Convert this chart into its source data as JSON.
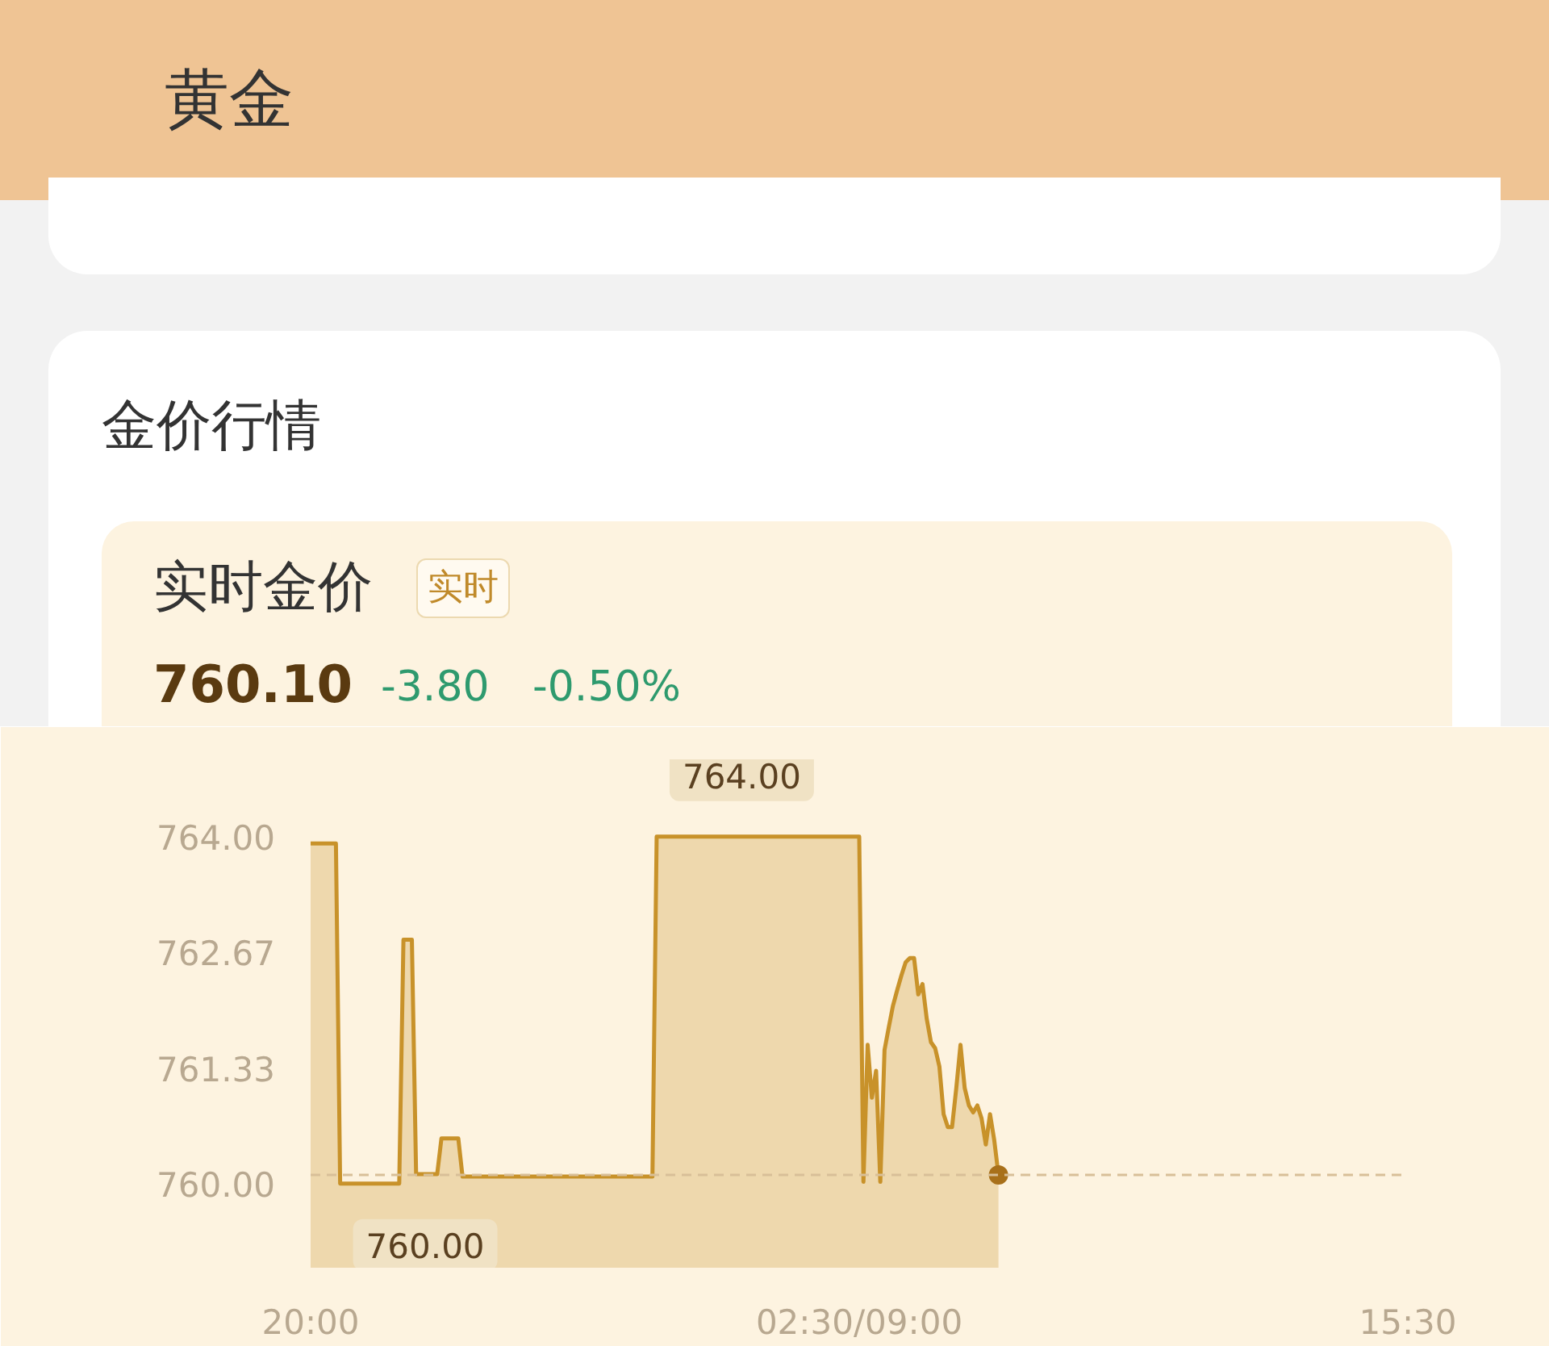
{
  "chart_data": {
    "type": "area",
    "title": "黄金",
    "subtitle": "金价行情",
    "annotations": [
      "实时金价",
      "实时",
      "760.10",
      "-3.80",
      "-0.50%",
      {
        "text": "764.00",
        "y": 764.0
      },
      {
        "text": "760.00",
        "y": 760.0
      }
    ],
    "categories": [
      "20:00",
      null,
      null,
      null,
      null,
      null,
      null,
      null,
      null,
      null,
      null,
      null,
      null,
      null,
      null,
      null,
      null,
      null,
      null,
      null,
      null,
      null,
      null,
      null,
      null,
      null,
      null,
      null,
      null,
      null,
      null,
      null,
      null,
      null,
      null,
      null,
      null,
      null,
      null,
      null,
      null,
      null,
      null,
      null,
      null,
      null,
      null,
      null,
      null,
      null,
      null,
      null,
      null,
      null,
      null,
      null,
      null,
      null,
      null,
      null,
      null,
      null,
      null,
      null,
      null,
      null,
      null,
      null,
      null,
      null,
      null,
      null,
      null,
      null,
      null,
      null,
      null,
      null,
      null,
      null,
      null,
      null,
      null,
      null,
      null,
      null,
      null,
      null,
      null,
      null,
      null,
      null,
      null,
      null,
      null,
      null,
      null,
      null,
      null,
      null,
      null,
      null,
      null,
      null,
      null,
      null,
      null,
      null,
      null,
      null,
      null,
      null,
      null,
      null,
      null,
      null,
      null,
      null,
      null,
      null,
      null,
      null,
      null,
      null,
      null,
      null,
      null,
      null,
      null,
      null,
      "02:30/09:00",
      null,
      null,
      null,
      null,
      null,
      null,
      null,
      null,
      null,
      null,
      null,
      null,
      null,
      null,
      null,
      null,
      null,
      null,
      null,
      null,
      null,
      null,
      null,
      null,
      null,
      null,
      null,
      null,
      null,
      null,
      null,
      null,
      null,
      null,
      null,
      null,
      null,
      null,
      null,
      null,
      null,
      null,
      null,
      null,
      null,
      null,
      null,
      null,
      null,
      null,
      null,
      null,
      null,
      null,
      null,
      null,
      null,
      null,
      null,
      null,
      null,
      null,
      null,
      null,
      null,
      null,
      null,
      null,
      null,
      null,
      null,
      null,
      null,
      null,
      null,
      null,
      null,
      null,
      null,
      null,
      null,
      null,
      null,
      null,
      null,
      null,
      null,
      null,
      null,
      null,
      null,
      null,
      null,
      null,
      null,
      null,
      null,
      null,
      null,
      null,
      null,
      null,
      null,
      null,
      null,
      null,
      null,
      null,
      null,
      null,
      null,
      null,
      null,
      null,
      null,
      null,
      null,
      null,
      null,
      null,
      null,
      null,
      null,
      null,
      null,
      null,
      null,
      null,
      null,
      "15:30"
    ],
    "ylim": [
      759.03,
      764.89
    ],
    "yticks": [
      {
        "value": 764.0,
        "label": "764.00"
      },
      {
        "value": 762.67,
        "label": "762.67"
      },
      {
        "value": 761.33,
        "label": "761.33"
      },
      {
        "value": 760.0,
        "label": "760.00"
      }
    ],
    "ref_lines": [
      {
        "axis": "y",
        "value": 760.1,
        "color": "#d8bf98",
        "line_style": "dashed"
      }
    ],
    "series": [
      {
        "color": "#c8922a",
        "values": [
          763.92,
          763.92,
          763.92,
          763.92,
          763.92,
          763.92,
          763.92,
          760.0,
          760.0,
          760.0,
          760.0,
          760.0,
          760.0,
          760.0,
          760.0,
          760.0,
          760.0,
          760.0,
          760.0,
          760.0,
          760.0,
          760.0,
          762.81,
          762.81,
          762.81,
          760.11,
          760.11,
          760.11,
          760.11,
          760.11,
          760.11,
          760.52,
          760.52,
          760.52,
          760.52,
          760.52,
          760.08,
          760.08,
          760.08,
          760.08,
          760.08,
          760.08,
          760.08,
          760.08,
          760.08,
          760.08,
          760.08,
          760.08,
          760.08,
          760.08,
          760.08,
          760.08,
          760.08,
          760.08,
          760.08,
          760.08,
          760.08,
          760.08,
          760.08,
          760.08,
          760.08,
          760.08,
          760.08,
          760.08,
          760.08,
          760.08,
          760.08,
          760.08,
          760.08,
          760.08,
          760.08,
          760.08,
          760.08,
          760.08,
          760.08,
          760.08,
          760.08,
          760.08,
          760.08,
          760.08,
          760.08,
          760.08,
          764.0,
          764.0,
          764.0,
          764.0,
          764.0,
          764.0,
          764.0,
          764.0,
          764.0,
          764.0,
          764.0,
          764.0,
          764.0,
          764.0,
          764.0,
          764.0,
          764.0,
          764.0,
          764.0,
          764.0,
          764.0,
          764.0,
          764.0,
          764.0,
          764.0,
          764.0,
          764.0,
          764.0,
          764.0,
          764.0,
          764.0,
          764.0,
          764.0,
          764.0,
          764.0,
          764.0,
          764.0,
          764.0,
          764.0,
          764.0,
          764.0,
          764.0,
          764.0,
          764.0,
          764.0,
          764.0,
          764.0,
          764.0,
          764.0,
          760.02,
          761.6,
          760.99,
          761.3,
          760.02,
          761.54,
          761.8,
          762.05,
          762.23,
          762.4,
          762.55,
          762.6,
          762.6,
          762.18,
          762.3,
          761.9,
          761.63,
          761.56,
          761.35,
          760.8,
          760.65,
          760.65,
          761.1,
          761.6,
          761.1,
          760.9,
          760.82,
          760.9,
          760.75,
          760.45,
          760.8,
          760.5,
          760.1,
          null,
          null,
          null,
          null,
          null,
          null,
          null,
          null,
          null,
          null,
          null,
          null,
          null,
          null,
          null,
          null,
          null,
          null,
          null,
          null,
          null,
          null,
          null,
          null,
          null,
          null,
          null,
          null,
          null,
          null,
          null,
          null,
          null,
          null,
          null,
          null,
          null,
          null,
          null,
          null,
          null,
          null,
          null,
          null,
          null,
          null,
          null,
          null,
          null,
          null,
          null,
          null,
          null,
          null,
          null,
          null,
          null,
          null,
          null,
          null,
          null,
          null,
          null,
          null,
          null,
          null,
          null,
          null,
          null,
          null,
          null,
          null,
          null,
          null,
          null,
          null,
          null,
          null,
          null,
          null,
          null,
          null,
          null,
          null,
          null,
          null,
          null,
          null,
          null,
          null,
          null,
          null,
          null,
          null,
          null,
          null,
          null
        ]
      },
      {
        "type": "scatter",
        "color": "#a8701a",
        "values": [
          null,
          null,
          null,
          null,
          null,
          null,
          null,
          null,
          null,
          null,
          null,
          null,
          null,
          null,
          null,
          null,
          null,
          null,
          null,
          null,
          null,
          null,
          null,
          null,
          null,
          null,
          null,
          null,
          null,
          null,
          null,
          null,
          null,
          null,
          null,
          null,
          null,
          null,
          null,
          null,
          null,
          null,
          null,
          null,
          null,
          null,
          null,
          null,
          null,
          null,
          null,
          null,
          null,
          null,
          null,
          null,
          null,
          null,
          null,
          null,
          null,
          null,
          null,
          null,
          null,
          null,
          null,
          null,
          null,
          null,
          null,
          null,
          null,
          null,
          null,
          null,
          null,
          null,
          null,
          null,
          null,
          null,
          null,
          null,
          null,
          null,
          null,
          null,
          null,
          null,
          null,
          null,
          null,
          null,
          null,
          null,
          null,
          null,
          null,
          null,
          null,
          null,
          null,
          null,
          null,
          null,
          null,
          null,
          null,
          null,
          null,
          null,
          null,
          null,
          null,
          null,
          null,
          null,
          null,
          null,
          null,
          null,
          null,
          null,
          null,
          null,
          null,
          null,
          null,
          null,
          null,
          null,
          null,
          null,
          null,
          null,
          null,
          null,
          null,
          null,
          null,
          null,
          null,
          null,
          null,
          null,
          null,
          null,
          null,
          null,
          null,
          null,
          null,
          null,
          null,
          null,
          null,
          null,
          null,
          null,
          null,
          null,
          null,
          760.1,
          null,
          null,
          null,
          null,
          null,
          null,
          null,
          null,
          null,
          null,
          null,
          null,
          null,
          null,
          null,
          null,
          null,
          null,
          null,
          null,
          null,
          null,
          null,
          null,
          null,
          null,
          null,
          null,
          null,
          null,
          null,
          null,
          null,
          null,
          null,
          null,
          null,
          null,
          null,
          null,
          null,
          null,
          null,
          null,
          null,
          null,
          null,
          null,
          null,
          null,
          null,
          null,
          null,
          null,
          null,
          null,
          null,
          null,
          null,
          null,
          null,
          null,
          null,
          null,
          null,
          null,
          null,
          null,
          null,
          null,
          null,
          null,
          null,
          null,
          null,
          null,
          null,
          null,
          null,
          null,
          null,
          null,
          null,
          null,
          null,
          null,
          null,
          null,
          null,
          null,
          null,
          null,
          null,
          null,
          null,
          null,
          null
        ]
      }
    ]
  }
}
